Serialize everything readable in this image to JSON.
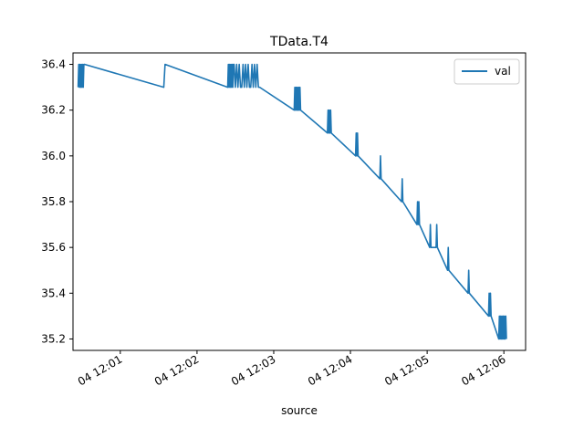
{
  "chart_data": {
    "type": "line",
    "title": "TData.T4",
    "xlabel": "source",
    "ylabel": "",
    "x_tick_labels": [
      "04 12:01",
      "04 12:02",
      "04 12:03",
      "04 12:04",
      "04 12:05",
      "04 12:06"
    ],
    "y_tick_labels": [
      "35.2",
      "35.4",
      "35.6",
      "35.8",
      "36.0",
      "36.2",
      "36.4"
    ],
    "ylim": [
      35.15,
      36.45
    ],
    "xlim": [
      "12:00:23",
      "12:06:17"
    ],
    "grid": false,
    "legend": "top-right",
    "series": [
      {
        "name": "val",
        "color": "#1f77b4",
        "x": [
          "12:00:27",
          "12:00:27.5",
          "12:00:28",
          "12:00:28.5",
          "12:00:29",
          "12:00:29.5",
          "12:00:30",
          "12:00:30.5",
          "12:00:31",
          "12:00:31.5",
          "12:00:32",
          "12:01:34",
          "12:01:35",
          "12:02:24",
          "12:02:24.5",
          "12:02:25",
          "12:02:25.5",
          "12:02:26",
          "12:02:26.5",
          "12:02:27",
          "12:02:27.5",
          "12:02:28",
          "12:02:28.5",
          "12:02:29",
          "12:02:30",
          "12:02:31",
          "12:02:32",
          "12:02:33",
          "12:02:34",
          "12:02:35",
          "12:02:36",
          "12:02:37",
          "12:02:38",
          "12:02:39",
          "12:02:40",
          "12:02:41",
          "12:02:42",
          "12:02:43",
          "12:02:44",
          "12:02:45",
          "12:02:46",
          "12:02:47",
          "12:02:48",
          "12:02:49",
          "12:03:16",
          "12:03:16.5",
          "12:03:17",
          "12:03:17.5",
          "12:03:18",
          "12:03:18.5",
          "12:03:19",
          "12:03:19.5",
          "12:03:20",
          "12:03:20.5",
          "12:03:21",
          "12:03:42",
          "12:03:42.5",
          "12:03:43",
          "12:03:43.5",
          "12:03:44",
          "12:03:44.5",
          "12:03:45",
          "12:04:04",
          "12:04:04.5",
          "12:04:05",
          "12:04:05.5",
          "12:04:06",
          "12:04:23",
          "12:04:23.5",
          "12:04:24",
          "12:04:40",
          "12:04:40.5",
          "12:04:41",
          "12:04:52",
          "12:04:52.5",
          "12:04:53",
          "12:04:53.5",
          "12:04:54",
          "12:05:02",
          "12:05:02.5",
          "12:05:03",
          "12:05:07",
          "12:05:07.5",
          "12:05:08",
          "12:05:16",
          "12:05:16.5",
          "12:05:17",
          "12:05:32",
          "12:05:32.5",
          "12:05:33",
          "12:05:48",
          "12:05:48.5",
          "12:05:49",
          "12:05:49.5",
          "12:05:50",
          "12:05:56",
          "12:05:56.5",
          "12:05:57",
          "12:05:57.5",
          "12:05:58",
          "12:05:58.5",
          "12:05:59",
          "12:05:59.5",
          "12:06:00",
          "12:06:00.5",
          "12:06:01",
          "12:06:01.5",
          "12:06:02"
        ],
        "y": [
          36.3,
          36.4,
          36.3,
          36.4,
          36.3,
          36.4,
          36.3,
          36.4,
          36.3,
          36.4,
          36.4,
          36.3,
          36.4,
          36.3,
          36.4,
          36.3,
          36.4,
          36.3,
          36.4,
          36.3,
          36.4,
          36.3,
          36.4,
          36.4,
          36.3,
          36.4,
          36.3,
          36.4,
          36.3,
          36.3,
          36.4,
          36.3,
          36.4,
          36.3,
          36.4,
          36.3,
          36.3,
          36.4,
          36.3,
          36.4,
          36.3,
          36.4,
          36.3,
          36.3,
          36.2,
          36.3,
          36.2,
          36.3,
          36.2,
          36.3,
          36.2,
          36.3,
          36.2,
          36.3,
          36.2,
          36.1,
          36.2,
          36.1,
          36.2,
          36.1,
          36.2,
          36.1,
          36.0,
          36.1,
          36.0,
          36.1,
          36.0,
          35.9,
          36.0,
          35.9,
          35.8,
          35.9,
          35.8,
          35.7,
          35.8,
          35.7,
          35.8,
          35.7,
          35.6,
          35.7,
          35.6,
          35.6,
          35.7,
          35.6,
          35.5,
          35.6,
          35.5,
          35.4,
          35.5,
          35.4,
          35.3,
          35.4,
          35.3,
          35.4,
          35.3,
          35.2,
          35.3,
          35.2,
          35.3,
          35.2,
          35.3,
          35.2,
          35.3,
          35.2,
          35.3,
          35.2,
          35.3,
          35.2
        ]
      }
    ]
  }
}
